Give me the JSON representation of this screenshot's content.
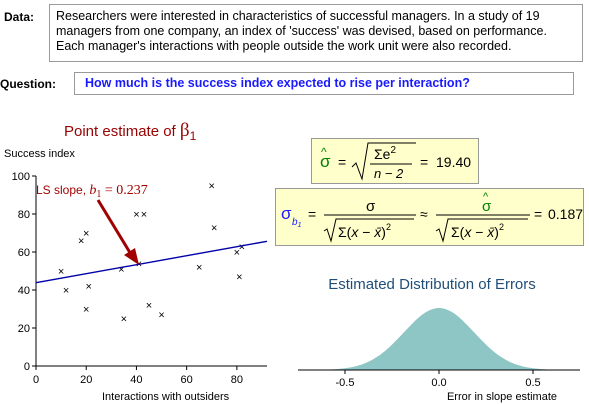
{
  "labels": {
    "data": "Data:",
    "question": "Question:"
  },
  "data_text": "Researchers were interested in characteristics of successful managers. In a study of 19 managers from one company, an index of 'success' was devised, based on performance. Each manager's interactions with people outside the work unit were also recorded.",
  "question_text": "How much is the success index expected to rise per interaction?",
  "point_estimate": {
    "title": "Point estimate of ",
    "symbol": "β",
    "subscript": "1"
  },
  "sigma_hat_formula": {
    "numerator": "Σe",
    "power": "2",
    "denominator": "n − 2",
    "result": "19.40"
  },
  "sigma_b1_formula": {
    "result": "0.187"
  },
  "colors": {
    "accent": "#1a1aff",
    "title_red": "#990000",
    "formula_bg": "#ffffcc",
    "line": "#0000aa",
    "arrow": "#a00000",
    "density": "#8ec5c5"
  },
  "chart_data": [
    {
      "type": "scatter",
      "title": "Point estimate of β1",
      "ylabel": "Success index",
      "xlabel": "Interactions with outsiders",
      "xlim": [
        0,
        92
      ],
      "ylim": [
        0,
        100
      ],
      "xticks": [
        0,
        20,
        40,
        60,
        80
      ],
      "yticks": [
        0,
        20,
        40,
        60,
        80,
        100
      ],
      "x": [
        10,
        12,
        18,
        20,
        20,
        21,
        34,
        35,
        40,
        41,
        43,
        45,
        50,
        65,
        70,
        71,
        80,
        81,
        82
      ],
      "y": [
        50,
        40,
        66,
        70,
        30,
        42,
        51,
        25,
        80,
        54,
        80,
        32,
        27,
        52,
        95,
        73,
        60,
        47,
        63
      ],
      "marker": "×",
      "fit_line": {
        "intercept": 43.83,
        "slope": 0.237
      },
      "annotation": {
        "text": "LS slope, ",
        "symbol": "b",
        "subscript": "1",
        "value": " = 0.237"
      }
    },
    {
      "type": "area",
      "title": "Estimated Distribution of Errors",
      "xlabel": "Error in slope estimate",
      "xlim": [
        -0.75,
        0.75
      ],
      "xticks": [
        "-0.5",
        "0.0",
        "0.5"
      ],
      "xtick_values": [
        -0.5,
        0.0,
        0.5
      ],
      "distribution": "normal",
      "mean": 0.0,
      "sd": 0.187
    }
  ]
}
